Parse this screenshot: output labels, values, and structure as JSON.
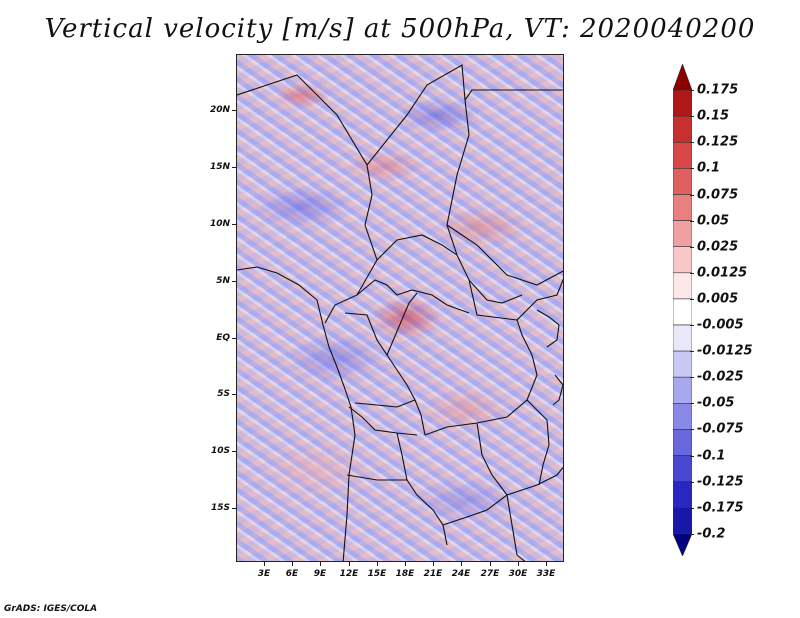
{
  "title": "Vertical velocity [m/s] at 500hPa, VT: 2020040200",
  "footer": "GrADS: IGES/COLA",
  "map": {
    "lat_labels": [
      "20N",
      "15N",
      "10N",
      "5N",
      "EQ",
      "5S",
      "10S",
      "15S"
    ],
    "lon_labels": [
      "3E",
      "6E",
      "9E",
      "12E",
      "15E",
      "18E",
      "21E",
      "24E",
      "27E",
      "30E",
      "33E"
    ]
  },
  "colorbar": {
    "labels": [
      "0.175",
      "0.15",
      "0.125",
      "0.1",
      "0.075",
      "0.05",
      "0.025",
      "0.0125",
      "0.005",
      "-0.005",
      "-0.0125",
      "-0.025",
      "-0.05",
      "-0.075",
      "-0.1",
      "-0.125",
      "-0.175",
      "-0.2"
    ],
    "colors": [
      "#8b0000",
      "#b01818",
      "#c83030",
      "#d84848",
      "#e06060",
      "#e88080",
      "#f0a0a0",
      "#f8c8c8",
      "#fce8e8",
      "#ffffff",
      "#e8e8fa",
      "#c8c8f4",
      "#a8a8ee",
      "#8888e6",
      "#6868dc",
      "#4848d0",
      "#2828c0",
      "#1818a8",
      "#000080"
    ]
  }
}
